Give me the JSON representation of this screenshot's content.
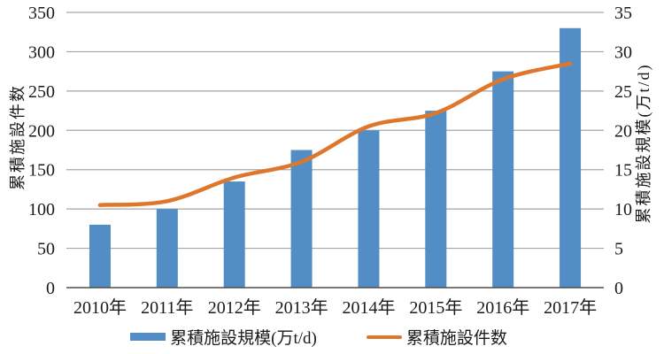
{
  "chart_data": {
    "type": "bar",
    "combo": "bar+line dual axis",
    "title": "",
    "categories": [
      "2010年",
      "2011年",
      "2012年",
      "2013年",
      "2014年",
      "2015年",
      "2016年",
      "2017年"
    ],
    "series": [
      {
        "name": "累積施設規模(万t/d)",
        "type": "bar",
        "axis": "right",
        "color": "#538DC5",
        "values": [
          8,
          10,
          13.5,
          17.5,
          20,
          22.5,
          27.5,
          33
        ]
      },
      {
        "name": "累積施設件数",
        "type": "line",
        "axis": "left",
        "color": "#DE772C",
        "values": [
          105,
          110,
          140,
          160,
          205,
          222,
          265,
          285
        ]
      }
    ],
    "left_axis": {
      "label": "累積施設件数",
      "min": 0,
      "max": 350,
      "step": 50,
      "ticks": [
        "0",
        "50",
        "100",
        "150",
        "200",
        "250",
        "300",
        "350"
      ]
    },
    "right_axis": {
      "label": "累積施設規模(万t/d)",
      "min": 0,
      "max": 35,
      "step": 5,
      "ticks": [
        "0",
        "5",
        "10",
        "15",
        "20",
        "25",
        "30",
        "35"
      ]
    },
    "grid": true,
    "legend_position": "bottom"
  },
  "colors": {
    "bar": "#538DC5",
    "line": "#DE772C",
    "grid": "#A6A6A6",
    "axis": "#4d4d4d",
    "text": "#1a1a1a"
  }
}
